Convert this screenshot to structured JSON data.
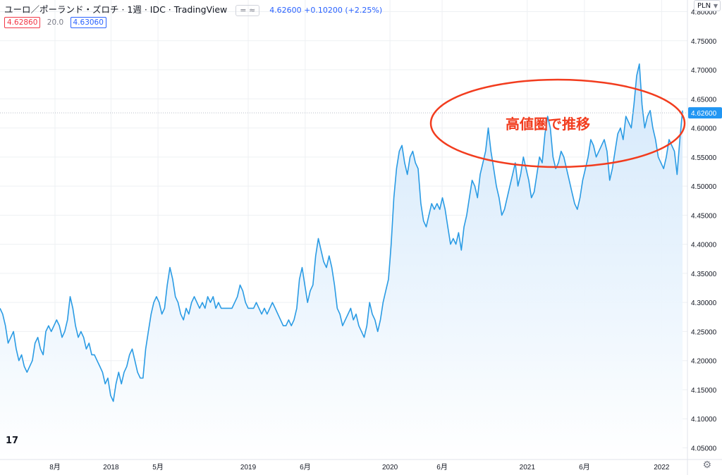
{
  "header": {
    "title": "ユーロ／ポーランド・ズロチ · 1週 · IDC · TradingView",
    "compare_toggle": "= ≈",
    "price_change": "4.62600 +0.10200 (+2.25%)"
  },
  "quote": {
    "bid": "4.62860",
    "spread": "20.0",
    "ask": "4.63060"
  },
  "currency_selector": "PLN",
  "logo_text": "17",
  "colors": {
    "line": "#2a9be4",
    "fill_top": "#cfe6fb",
    "fill_bottom": "#ffffff",
    "grid": "#eef0f3",
    "annotation": "#f23c1e",
    "last_price_bg": "#2196f3"
  },
  "chart_data": {
    "type": "area",
    "title": "ユーロ／ポーランド・ズロチ",
    "xlabel": "",
    "ylabel": "",
    "ylim": [
      4.03,
      4.82
    ],
    "x_tick_labels": [
      "8月",
      "2018",
      "5月",
      "2019",
      "6月",
      "2020",
      "6月",
      "2021",
      "6月",
      "2022"
    ],
    "y_tick_labels": [
      "4.80000",
      "4.75000",
      "4.70000",
      "4.65000",
      "4.60000",
      "4.55000",
      "4.50000",
      "4.45000",
      "4.40000",
      "4.35000",
      "4.30000",
      "4.25000",
      "4.20000",
      "4.15000",
      "4.10000",
      "4.05000"
    ],
    "last_price_label": "4.62600",
    "last_price": 4.626,
    "grid": true,
    "annotation": "高値圏で推移",
    "series": [
      {
        "values": [
          4.29,
          4.28,
          4.26,
          4.23,
          4.24,
          4.25,
          4.22,
          4.2,
          4.21,
          4.19,
          4.18,
          4.19,
          4.2,
          4.23,
          4.24,
          4.22,
          4.21,
          4.25,
          4.26,
          4.25,
          4.26,
          4.27,
          4.26,
          4.24,
          4.25,
          4.27,
          4.31,
          4.29,
          4.26,
          4.24,
          4.25,
          4.24,
          4.22,
          4.23,
          4.21,
          4.21,
          4.2,
          4.19,
          4.18,
          4.16,
          4.17,
          4.14,
          4.13,
          4.16,
          4.18,
          4.16,
          4.18,
          4.19,
          4.21,
          4.22,
          4.2,
          4.18,
          4.17,
          4.17,
          4.22,
          4.25,
          4.28,
          4.3,
          4.31,
          4.3,
          4.28,
          4.29,
          4.33,
          4.36,
          4.34,
          4.31,
          4.3,
          4.28,
          4.27,
          4.29,
          4.28,
          4.3,
          4.31,
          4.3,
          4.29,
          4.3,
          4.29,
          4.31,
          4.3,
          4.31,
          4.29,
          4.3,
          4.29,
          4.29,
          4.29,
          4.29,
          4.29,
          4.3,
          4.31,
          4.33,
          4.32,
          4.3,
          4.29,
          4.29,
          4.29,
          4.3,
          4.29,
          4.28,
          4.29,
          4.28,
          4.29,
          4.3,
          4.29,
          4.28,
          4.27,
          4.26,
          4.26,
          4.27,
          4.26,
          4.27,
          4.29,
          4.34,
          4.36,
          4.33,
          4.3,
          4.32,
          4.33,
          4.38,
          4.41,
          4.39,
          4.37,
          4.36,
          4.38,
          4.36,
          4.33,
          4.29,
          4.28,
          4.26,
          4.27,
          4.28,
          4.29,
          4.27,
          4.28,
          4.26,
          4.25,
          4.24,
          4.26,
          4.3,
          4.28,
          4.27,
          4.25,
          4.27,
          4.3,
          4.32,
          4.34,
          4.4,
          4.48,
          4.53,
          4.56,
          4.57,
          4.54,
          4.52,
          4.55,
          4.56,
          4.54,
          4.53,
          4.47,
          4.44,
          4.43,
          4.45,
          4.47,
          4.46,
          4.47,
          4.46,
          4.48,
          4.46,
          4.43,
          4.4,
          4.41,
          4.4,
          4.42,
          4.39,
          4.43,
          4.45,
          4.48,
          4.51,
          4.5,
          4.48,
          4.52,
          4.54,
          4.56,
          4.6,
          4.56,
          4.53,
          4.5,
          4.48,
          4.45,
          4.46,
          4.48,
          4.5,
          4.52,
          4.54,
          4.5,
          4.52,
          4.55,
          4.53,
          4.51,
          4.48,
          4.49,
          4.52,
          4.55,
          4.54,
          4.59,
          4.62,
          4.6,
          4.55,
          4.53,
          4.54,
          4.56,
          4.55,
          4.53,
          4.51,
          4.49,
          4.47,
          4.46,
          4.48,
          4.51,
          4.53,
          4.55,
          4.58,
          4.57,
          4.55,
          4.56,
          4.57,
          4.58,
          4.56,
          4.51,
          4.53,
          4.56,
          4.59,
          4.6,
          4.58,
          4.62,
          4.61,
          4.6,
          4.64,
          4.69,
          4.71,
          4.64,
          4.6,
          4.62,
          4.63,
          4.6,
          4.58,
          4.55,
          4.54,
          4.53,
          4.55,
          4.58,
          4.57,
          4.56,
          4.52,
          4.58,
          4.63
        ]
      }
    ]
  }
}
